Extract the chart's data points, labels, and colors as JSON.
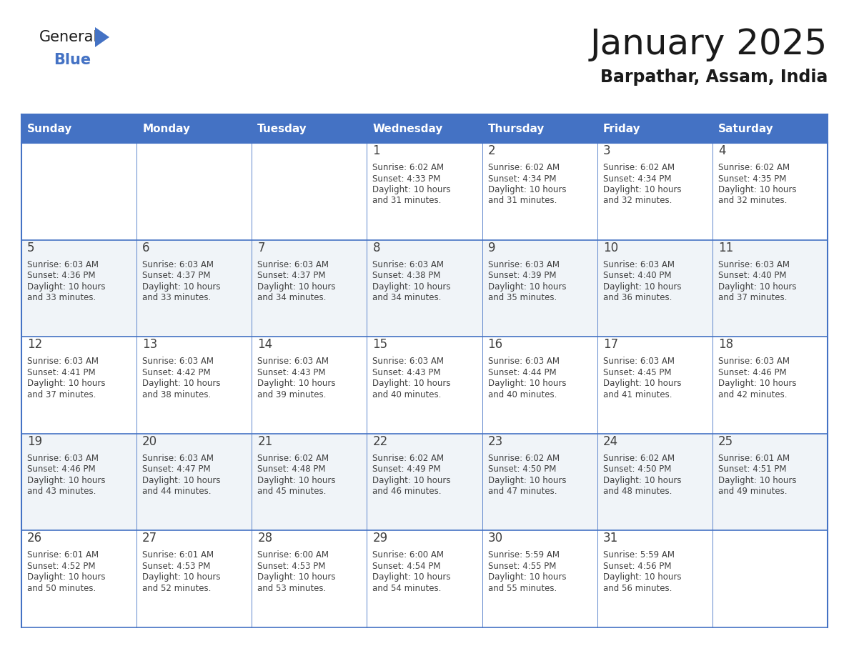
{
  "title": "January 2025",
  "subtitle": "Barpathar, Assam, India",
  "header_color": "#4472C4",
  "header_text_color": "#FFFFFF",
  "days_of_week": [
    "Sunday",
    "Monday",
    "Tuesday",
    "Wednesday",
    "Thursday",
    "Friday",
    "Saturday"
  ],
  "background_color": "#FFFFFF",
  "row_alt_color": "#F0F4F8",
  "cell_border_color": "#4472C4",
  "text_color": "#404040",
  "title_color": "#1a1a1a",
  "logo_general_color": "#1a1a1a",
  "logo_blue_color": "#4472C4",
  "logo_triangle_color": "#4472C4",
  "calendar_data": [
    [
      {
        "day": "",
        "sunrise": "",
        "sunset": "",
        "daylight": ""
      },
      {
        "day": "",
        "sunrise": "",
        "sunset": "",
        "daylight": ""
      },
      {
        "day": "",
        "sunrise": "",
        "sunset": "",
        "daylight": ""
      },
      {
        "day": "1",
        "sunrise": "6:02 AM",
        "sunset": "4:33 PM",
        "daylight": "10 hours and 31 minutes."
      },
      {
        "day": "2",
        "sunrise": "6:02 AM",
        "sunset": "4:34 PM",
        "daylight": "10 hours and 31 minutes."
      },
      {
        "day": "3",
        "sunrise": "6:02 AM",
        "sunset": "4:34 PM",
        "daylight": "10 hours and 32 minutes."
      },
      {
        "day": "4",
        "sunrise": "6:02 AM",
        "sunset": "4:35 PM",
        "daylight": "10 hours and 32 minutes."
      }
    ],
    [
      {
        "day": "5",
        "sunrise": "6:03 AM",
        "sunset": "4:36 PM",
        "daylight": "10 hours and 33 minutes."
      },
      {
        "day": "6",
        "sunrise": "6:03 AM",
        "sunset": "4:37 PM",
        "daylight": "10 hours and 33 minutes."
      },
      {
        "day": "7",
        "sunrise": "6:03 AM",
        "sunset": "4:37 PM",
        "daylight": "10 hours and 34 minutes."
      },
      {
        "day": "8",
        "sunrise": "6:03 AM",
        "sunset": "4:38 PM",
        "daylight": "10 hours and 34 minutes."
      },
      {
        "day": "9",
        "sunrise": "6:03 AM",
        "sunset": "4:39 PM",
        "daylight": "10 hours and 35 minutes."
      },
      {
        "day": "10",
        "sunrise": "6:03 AM",
        "sunset": "4:40 PM",
        "daylight": "10 hours and 36 minutes."
      },
      {
        "day": "11",
        "sunrise": "6:03 AM",
        "sunset": "4:40 PM",
        "daylight": "10 hours and 37 minutes."
      }
    ],
    [
      {
        "day": "12",
        "sunrise": "6:03 AM",
        "sunset": "4:41 PM",
        "daylight": "10 hours and 37 minutes."
      },
      {
        "day": "13",
        "sunrise": "6:03 AM",
        "sunset": "4:42 PM",
        "daylight": "10 hours and 38 minutes."
      },
      {
        "day": "14",
        "sunrise": "6:03 AM",
        "sunset": "4:43 PM",
        "daylight": "10 hours and 39 minutes."
      },
      {
        "day": "15",
        "sunrise": "6:03 AM",
        "sunset": "4:43 PM",
        "daylight": "10 hours and 40 minutes."
      },
      {
        "day": "16",
        "sunrise": "6:03 AM",
        "sunset": "4:44 PM",
        "daylight": "10 hours and 40 minutes."
      },
      {
        "day": "17",
        "sunrise": "6:03 AM",
        "sunset": "4:45 PM",
        "daylight": "10 hours and 41 minutes."
      },
      {
        "day": "18",
        "sunrise": "6:03 AM",
        "sunset": "4:46 PM",
        "daylight": "10 hours and 42 minutes."
      }
    ],
    [
      {
        "day": "19",
        "sunrise": "6:03 AM",
        "sunset": "4:46 PM",
        "daylight": "10 hours and 43 minutes."
      },
      {
        "day": "20",
        "sunrise": "6:03 AM",
        "sunset": "4:47 PM",
        "daylight": "10 hours and 44 minutes."
      },
      {
        "day": "21",
        "sunrise": "6:02 AM",
        "sunset": "4:48 PM",
        "daylight": "10 hours and 45 minutes."
      },
      {
        "day": "22",
        "sunrise": "6:02 AM",
        "sunset": "4:49 PM",
        "daylight": "10 hours and 46 minutes."
      },
      {
        "day": "23",
        "sunrise": "6:02 AM",
        "sunset": "4:50 PM",
        "daylight": "10 hours and 47 minutes."
      },
      {
        "day": "24",
        "sunrise": "6:02 AM",
        "sunset": "4:50 PM",
        "daylight": "10 hours and 48 minutes."
      },
      {
        "day": "25",
        "sunrise": "6:01 AM",
        "sunset": "4:51 PM",
        "daylight": "10 hours and 49 minutes."
      }
    ],
    [
      {
        "day": "26",
        "sunrise": "6:01 AM",
        "sunset": "4:52 PM",
        "daylight": "10 hours and 50 minutes."
      },
      {
        "day": "27",
        "sunrise": "6:01 AM",
        "sunset": "4:53 PM",
        "daylight": "10 hours and 52 minutes."
      },
      {
        "day": "28",
        "sunrise": "6:00 AM",
        "sunset": "4:53 PM",
        "daylight": "10 hours and 53 minutes."
      },
      {
        "day": "29",
        "sunrise": "6:00 AM",
        "sunset": "4:54 PM",
        "daylight": "10 hours and 54 minutes."
      },
      {
        "day": "30",
        "sunrise": "5:59 AM",
        "sunset": "4:55 PM",
        "daylight": "10 hours and 55 minutes."
      },
      {
        "day": "31",
        "sunrise": "5:59 AM",
        "sunset": "4:56 PM",
        "daylight": "10 hours and 56 minutes."
      },
      {
        "day": "",
        "sunrise": "",
        "sunset": "",
        "daylight": ""
      }
    ]
  ]
}
